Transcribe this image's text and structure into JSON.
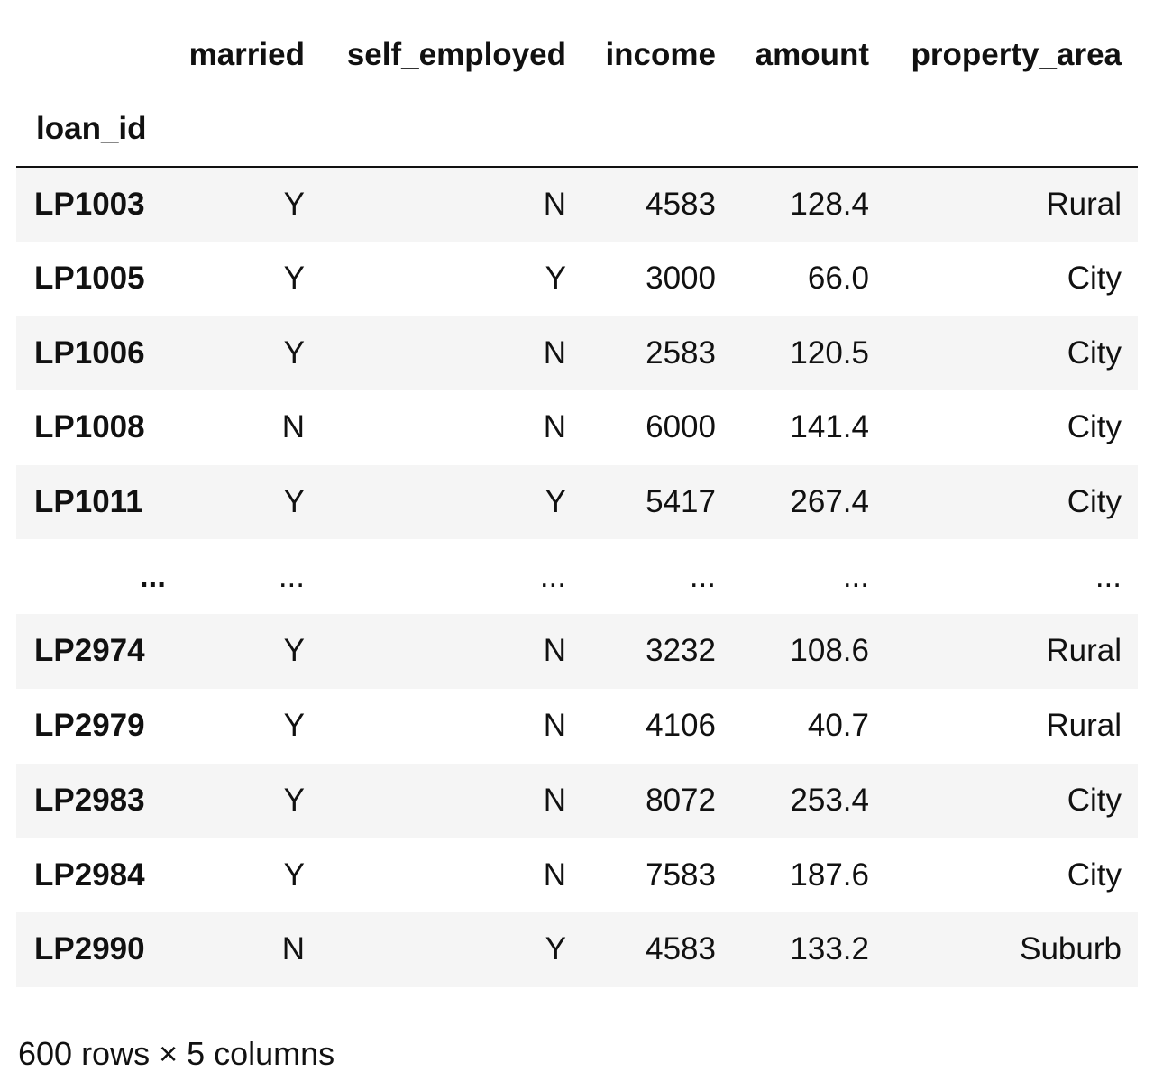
{
  "table": {
    "columns": [
      "married",
      "self_employed",
      "income",
      "amount",
      "property_area"
    ],
    "index_name": "loan_id",
    "rows": [
      {
        "index": "LP1003",
        "cells": [
          "Y",
          "N",
          "4583",
          "128.4",
          "Rural"
        ]
      },
      {
        "index": "LP1005",
        "cells": [
          "Y",
          "Y",
          "3000",
          "66.0",
          "City"
        ]
      },
      {
        "index": "LP1006",
        "cells": [
          "Y",
          "N",
          "2583",
          "120.5",
          "City"
        ]
      },
      {
        "index": "LP1008",
        "cells": [
          "N",
          "N",
          "6000",
          "141.4",
          "City"
        ]
      },
      {
        "index": "LP1011",
        "cells": [
          "Y",
          "Y",
          "5417",
          "267.4",
          "City"
        ]
      },
      {
        "index": "...",
        "cells": [
          "...",
          "...",
          "...",
          "...",
          "..."
        ]
      },
      {
        "index": "LP2974",
        "cells": [
          "Y",
          "N",
          "3232",
          "108.6",
          "Rural"
        ]
      },
      {
        "index": "LP2979",
        "cells": [
          "Y",
          "N",
          "4106",
          "40.7",
          "Rural"
        ]
      },
      {
        "index": "LP2983",
        "cells": [
          "Y",
          "N",
          "8072",
          "253.4",
          "City"
        ]
      },
      {
        "index": "LP2984",
        "cells": [
          "Y",
          "N",
          "7583",
          "187.6",
          "City"
        ]
      },
      {
        "index": "LP2990",
        "cells": [
          "N",
          "Y",
          "4583",
          "133.2",
          "Suburb"
        ]
      }
    ]
  },
  "footer": "600 rows × 5 columns"
}
